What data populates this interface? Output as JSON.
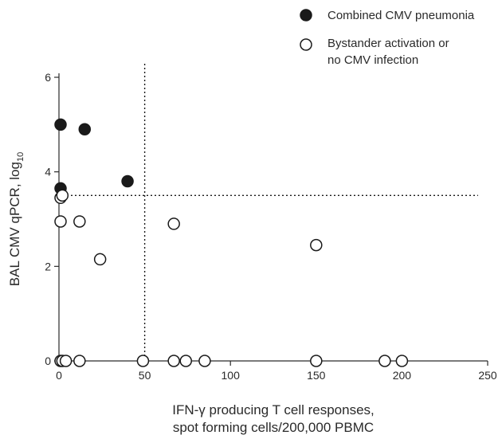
{
  "chart_data": {
    "type": "scatter",
    "xlabel_lines": [
      "IFN-γ producing T cell responses,",
      "spot forming cells/200,000 PBMC"
    ],
    "ylabel": "BAL CMV qPCR, log",
    "ylabel_subscript": "10",
    "xlim": [
      0,
      250
    ],
    "ylim": [
      0,
      6
    ],
    "x_ticks": [
      "0",
      "50",
      "100",
      "150",
      "200",
      "250"
    ],
    "y_ticks": [
      "0",
      "2",
      "4",
      "6"
    ],
    "reference_lines": {
      "x": 50,
      "y": 3.5
    },
    "legend_position": "top-right",
    "series": [
      {
        "name": "Combined CMV pneumonia",
        "marker": "filled-circle",
        "color": "#1a1a1a",
        "points": [
          {
            "x": 0,
            "y": 5.0
          },
          {
            "x": 15,
            "y": 4.9
          },
          {
            "x": 40,
            "y": 3.8
          },
          {
            "x": 0,
            "y": 3.65
          }
        ]
      },
      {
        "name_lines": [
          "Bystander activation or",
          "no CMV infection"
        ],
        "marker": "open-circle",
        "color": "#1a1a1a",
        "points": [
          {
            "x": 0,
            "y": 3.45
          },
          {
            "x": 2,
            "y": 3.5
          },
          {
            "x": 0,
            "y": 2.95
          },
          {
            "x": 12,
            "y": 2.95
          },
          {
            "x": 24,
            "y": 2.15
          },
          {
            "x": 67,
            "y": 2.9
          },
          {
            "x": 150,
            "y": 2.45
          },
          {
            "x": 0,
            "y": 0
          },
          {
            "x": 2,
            "y": 0
          },
          {
            "x": 4,
            "y": 0
          },
          {
            "x": 12,
            "y": 0
          },
          {
            "x": 49,
            "y": 0
          },
          {
            "x": 67,
            "y": 0
          },
          {
            "x": 74,
            "y": 0
          },
          {
            "x": 85,
            "y": 0
          },
          {
            "x": 150,
            "y": 0
          },
          {
            "x": 190,
            "y": 0
          },
          {
            "x": 200,
            "y": 0
          }
        ]
      }
    ]
  }
}
